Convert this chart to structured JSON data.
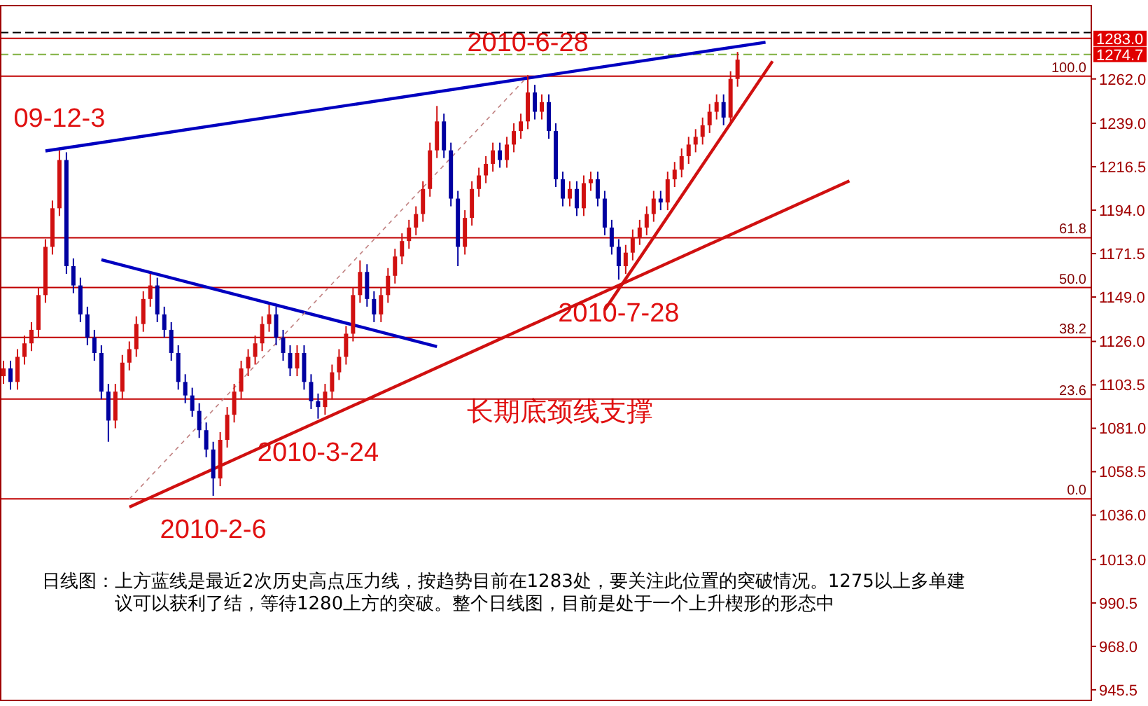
{
  "chart_data": {
    "type": "candlestick",
    "categories": [
      null,
      null,
      null,
      null,
      null,
      null,
      null,
      null,
      null,
      null,
      null,
      null,
      null,
      null,
      null,
      null,
      null,
      null,
      null,
      null,
      null,
      null,
      null,
      null,
      null,
      null,
      null,
      null,
      null,
      null,
      null,
      null,
      null,
      null,
      null,
      null,
      null,
      null,
      null,
      null,
      null,
      null,
      null,
      null,
      null,
      null,
      null,
      null,
      null,
      null,
      null,
      null,
      null,
      null,
      null,
      null,
      null,
      null,
      null,
      null,
      null,
      null,
      null,
      null,
      null,
      null,
      null,
      null,
      null,
      null,
      null,
      null,
      null,
      null,
      null,
      null,
      null,
      null,
      null,
      null,
      null,
      null,
      null,
      null,
      null,
      null,
      null,
      null,
      null,
      null,
      null,
      null,
      null,
      null,
      null,
      null,
      null,
      null,
      null,
      null,
      null,
      null,
      null,
      null,
      null,
      null,
      null,
      null,
      null,
      null,
      null,
      null,
      null,
      null,
      null,
      null,
      null,
      null,
      null,
      null,
      null,
      null,
      null,
      null,
      null,
      null,
      null,
      null,
      null,
      null,
      null,
      null,
      null,
      null,
      null,
      null,
      null,
      null,
      null,
      null,
      null,
      null,
      null,
      null,
      null,
      null,
      null,
      null,
      null,
      null,
      null,
      null,
      null,
      null,
      null,
      null
    ],
    "ohlc": [
      [
        1108,
        1116,
        1104,
        1112
      ],
      [
        1112,
        1116,
        1101,
        1105
      ],
      [
        1105,
        1122,
        1101,
        1118
      ],
      [
        1118,
        1129,
        1114,
        1125
      ],
      [
        1125,
        1136,
        1121,
        1132
      ],
      [
        1132,
        1154,
        1128,
        1150
      ],
      [
        1150,
        1179,
        1146,
        1175
      ],
      [
        1175,
        1199,
        1171,
        1195
      ],
      [
        1195,
        1225,
        1191,
        1220
      ],
      [
        1220,
        1224,
        1161,
        1165
      ],
      [
        1165,
        1169,
        1151,
        1155
      ],
      [
        1155,
        1159,
        1136,
        1140
      ],
      [
        1140,
        1144,
        1124,
        1128
      ],
      [
        1128,
        1132,
        1116,
        1120
      ],
      [
        1120,
        1124,
        1096,
        1100
      ],
      [
        1100,
        1104,
        1074,
        1085
      ],
      [
        1085,
        1104,
        1081,
        1100
      ],
      [
        1100,
        1119,
        1096,
        1115
      ],
      [
        1115,
        1126,
        1111,
        1122
      ],
      [
        1122,
        1139,
        1118,
        1135
      ],
      [
        1135,
        1152,
        1131,
        1148
      ],
      [
        1148,
        1161,
        1144,
        1155
      ],
      [
        1155,
        1159,
        1136,
        1140
      ],
      [
        1140,
        1144,
        1128,
        1132
      ],
      [
        1132,
        1136,
        1116,
        1120
      ],
      [
        1120,
        1124,
        1101,
        1105
      ],
      [
        1105,
        1109,
        1094,
        1098
      ],
      [
        1098,
        1102,
        1087,
        1090
      ],
      [
        1090,
        1094,
        1076,
        1080
      ],
      [
        1080,
        1084,
        1066,
        1070
      ],
      [
        1070,
        1074,
        1046,
        1055
      ],
      [
        1055,
        1079,
        1051,
        1075
      ],
      [
        1075,
        1092,
        1071,
        1088
      ],
      [
        1088,
        1104,
        1084,
        1100
      ],
      [
        1100,
        1116,
        1096,
        1112
      ],
      [
        1112,
        1122,
        1108,
        1118
      ],
      [
        1118,
        1129,
        1114,
        1125
      ],
      [
        1125,
        1139,
        1121,
        1135
      ],
      [
        1135,
        1145,
        1131,
        1140
      ],
      [
        1140,
        1144,
        1124,
        1128
      ],
      [
        1128,
        1132,
        1116,
        1120
      ],
      [
        1120,
        1124,
        1108,
        1112
      ],
      [
        1112,
        1124,
        1108,
        1120
      ],
      [
        1120,
        1124,
        1101,
        1105
      ],
      [
        1105,
        1109,
        1091,
        1095
      ],
      [
        1095,
        1099,
        1086,
        1092
      ],
      [
        1092,
        1104,
        1088,
        1100
      ],
      [
        1100,
        1114,
        1096,
        1110
      ],
      [
        1110,
        1122,
        1106,
        1118
      ],
      [
        1118,
        1134,
        1114,
        1130
      ],
      [
        1130,
        1154,
        1126,
        1150
      ],
      [
        1150,
        1168,
        1146,
        1162
      ],
      [
        1162,
        1166,
        1144,
        1148
      ],
      [
        1148,
        1152,
        1136,
        1140
      ],
      [
        1140,
        1154,
        1136,
        1150
      ],
      [
        1150,
        1164,
        1146,
        1160
      ],
      [
        1160,
        1174,
        1156,
        1170
      ],
      [
        1170,
        1182,
        1166,
        1178
      ],
      [
        1178,
        1189,
        1174,
        1185
      ],
      [
        1185,
        1196,
        1181,
        1192
      ],
      [
        1192,
        1209,
        1188,
        1205
      ],
      [
        1205,
        1229,
        1201,
        1225
      ],
      [
        1225,
        1248,
        1221,
        1240
      ],
      [
        1240,
        1244,
        1221,
        1225
      ],
      [
        1225,
        1229,
        1196,
        1200
      ],
      [
        1200,
        1204,
        1165,
        1175
      ],
      [
        1175,
        1194,
        1171,
        1190
      ],
      [
        1190,
        1209,
        1186,
        1205
      ],
      [
        1205,
        1216,
        1201,
        1212
      ],
      [
        1212,
        1222,
        1208,
        1218
      ],
      [
        1218,
        1229,
        1214,
        1225
      ],
      [
        1225,
        1229,
        1216,
        1220
      ],
      [
        1220,
        1232,
        1216,
        1228
      ],
      [
        1228,
        1239,
        1224,
        1235
      ],
      [
        1235,
        1244,
        1231,
        1240
      ],
      [
        1240,
        1264,
        1236,
        1255
      ],
      [
        1255,
        1259,
        1241,
        1245
      ],
      [
        1245,
        1254,
        1241,
        1250
      ],
      [
        1250,
        1254,
        1231,
        1235
      ],
      [
        1235,
        1239,
        1206,
        1210
      ],
      [
        1210,
        1214,
        1196,
        1200
      ],
      [
        1200,
        1209,
        1196,
        1205
      ],
      [
        1205,
        1209,
        1191,
        1195
      ],
      [
        1195,
        1212,
        1191,
        1208
      ],
      [
        1208,
        1214,
        1204,
        1210
      ],
      [
        1210,
        1214,
        1196,
        1200
      ],
      [
        1200,
        1204,
        1181,
        1185
      ],
      [
        1185,
        1189,
        1171,
        1175
      ],
      [
        1175,
        1179,
        1158,
        1165
      ],
      [
        1165,
        1176,
        1161,
        1172
      ],
      [
        1172,
        1184,
        1168,
        1180
      ],
      [
        1180,
        1189,
        1176,
        1185
      ],
      [
        1185,
        1196,
        1181,
        1192
      ],
      [
        1192,
        1204,
        1188,
        1200
      ],
      [
        1200,
        1204,
        1194,
        1198
      ],
      [
        1198,
        1214,
        1194,
        1210
      ],
      [
        1210,
        1219,
        1206,
        1215
      ],
      [
        1215,
        1226,
        1211,
        1222
      ],
      [
        1222,
        1232,
        1218,
        1228
      ],
      [
        1228,
        1236,
        1224,
        1232
      ],
      [
        1232,
        1242,
        1228,
        1238
      ],
      [
        1238,
        1249,
        1234,
        1245
      ],
      [
        1245,
        1254,
        1241,
        1250
      ],
      [
        1250,
        1254,
        1238,
        1242
      ],
      [
        1242,
        1266,
        1238,
        1262
      ],
      [
        1262,
        1276,
        1258,
        1272
      ],
      null,
      null,
      null,
      null,
      null,
      null,
      null,
      null,
      null,
      null,
      null,
      null,
      null,
      null,
      null,
      null,
      null,
      null,
      null,
      null,
      null,
      null,
      null,
      null,
      null,
      null,
      null,
      null,
      null,
      null,
      null,
      null,
      null,
      null,
      null,
      null,
      null,
      null,
      null,
      null,
      null,
      null,
      null,
      null,
      null,
      null,
      null,
      null,
      null,
      null
    ],
    "series": [
      {
        "type": "line",
        "color": "#0000c0",
        "values": [
          null,
          null,
          null,
          null,
          null,
          null,
          1224.7,
          null,
          null,
          null,
          null,
          null,
          null,
          null,
          null,
          null,
          null,
          null,
          null,
          null,
          null,
          null,
          null,
          null,
          null,
          null,
          null,
          null,
          null,
          null,
          null,
          null,
          null,
          null,
          null,
          null,
          null,
          null,
          null,
          null,
          null,
          null,
          null,
          null,
          null,
          null,
          null,
          null,
          null,
          null,
          null,
          null,
          null,
          null,
          null,
          null,
          null,
          null,
          null,
          null,
          null,
          null,
          null,
          null,
          null,
          null,
          null,
          null,
          null,
          null,
          null,
          null,
          null,
          null,
          null,
          null,
          null,
          null,
          null,
          null,
          null,
          null,
          null,
          null,
          null,
          null,
          null,
          null,
          null,
          null,
          null,
          null,
          null,
          null,
          null,
          null,
          null,
          null,
          null,
          null,
          null,
          null,
          null,
          null,
          null,
          null,
          null,
          null,
          null,
          1281.0,
          null,
          null,
          null,
          null,
          null,
          null,
          null,
          null,
          null,
          null,
          null,
          null,
          null,
          null,
          null,
          null,
          null,
          null,
          null,
          null,
          null,
          null,
          null,
          null,
          null,
          null,
          null,
          null,
          null,
          null,
          null,
          null,
          null,
          null,
          null,
          null,
          null,
          null,
          null,
          null,
          null,
          null,
          null,
          null,
          null,
          null
        ]
      },
      {
        "type": "line",
        "color": "#0000c0",
        "values": [
          null,
          null,
          null,
          null,
          null,
          null,
          null,
          null,
          null,
          null,
          null,
          null,
          null,
          null,
          1168.3,
          null,
          null,
          null,
          null,
          null,
          null,
          null,
          null,
          null,
          null,
          null,
          null,
          null,
          null,
          null,
          null,
          null,
          null,
          null,
          null,
          null,
          null,
          null,
          null,
          null,
          null,
          null,
          null,
          null,
          null,
          null,
          null,
          null,
          null,
          null,
          null,
          null,
          null,
          null,
          null,
          null,
          null,
          null,
          null,
          null,
          null,
          null,
          1123.3,
          null,
          null,
          null,
          null,
          null,
          null,
          null,
          null,
          null,
          null,
          null,
          null,
          null,
          null,
          null,
          null,
          null,
          null,
          null,
          null,
          null,
          null,
          null,
          null,
          null,
          null,
          null,
          null,
          null,
          null,
          null,
          null,
          null,
          null,
          null,
          null,
          null,
          null,
          null,
          null,
          null,
          null,
          null,
          null,
          null,
          null,
          null,
          null,
          null,
          null,
          null,
          null,
          null,
          null,
          null,
          null,
          null,
          null,
          null,
          null,
          null,
          null,
          null,
          null,
          null,
          null,
          null,
          null,
          null,
          null,
          null,
          null,
          null,
          null,
          null,
          null,
          null,
          null,
          null,
          null,
          null,
          null,
          null,
          null,
          null,
          null,
          null,
          null,
          null,
          null,
          null,
          null,
          null
        ]
      },
      {
        "type": "line",
        "color": "#d01010",
        "values": [
          null,
          null,
          null,
          null,
          null,
          null,
          null,
          null,
          null,
          null,
          null,
          null,
          null,
          null,
          null,
          null,
          null,
          null,
          1040.2,
          null,
          null,
          null,
          null,
          null,
          null,
          null,
          null,
          null,
          null,
          null,
          null,
          null,
          null,
          null,
          null,
          null,
          null,
          null,
          null,
          null,
          null,
          null,
          null,
          null,
          null,
          null,
          null,
          null,
          null,
          null,
          null,
          null,
          null,
          null,
          null,
          null,
          null,
          null,
          null,
          null,
          null,
          null,
          null,
          null,
          null,
          null,
          null,
          null,
          null,
          null,
          null,
          null,
          null,
          null,
          null,
          null,
          null,
          null,
          null,
          null,
          null,
          null,
          null,
          null,
          null,
          null,
          null,
          null,
          null,
          null,
          null,
          null,
          null,
          null,
          null,
          null,
          null,
          null,
          null,
          null,
          null,
          null,
          null,
          null,
          null,
          null,
          null,
          null,
          null,
          null,
          null,
          null,
          null,
          null,
          null,
          null,
          null,
          null,
          null,
          null,
          null,
          1209.2,
          null,
          null,
          null,
          null,
          null,
          null,
          null,
          null,
          null,
          null,
          null,
          null,
          null,
          null,
          null,
          null,
          null,
          null,
          null,
          null,
          null,
          null,
          null,
          null,
          null,
          null,
          null,
          null,
          null,
          null,
          null,
          null,
          null,
          null
        ]
      },
      {
        "type": "line",
        "color": "#d01010",
        "values": [
          null,
          null,
          null,
          null,
          null,
          null,
          null,
          null,
          null,
          null,
          null,
          null,
          null,
          null,
          null,
          null,
          null,
          null,
          null,
          null,
          null,
          null,
          null,
          null,
          null,
          null,
          null,
          null,
          null,
          null,
          null,
          null,
          null,
          null,
          null,
          null,
          null,
          null,
          null,
          null,
          null,
          null,
          null,
          null,
          null,
          null,
          null,
          null,
          null,
          null,
          null,
          null,
          null,
          null,
          null,
          null,
          null,
          null,
          null,
          null,
          null,
          null,
          null,
          null,
          null,
          null,
          null,
          null,
          null,
          null,
          null,
          null,
          null,
          null,
          null,
          null,
          null,
          null,
          null,
          null,
          null,
          null,
          null,
          null,
          null,
          null,
          1142.3,
          null,
          null,
          null,
          null,
          null,
          null,
          null,
          null,
          null,
          null,
          null,
          null,
          null,
          null,
          null,
          null,
          null,
          null,
          null,
          null,
          null,
          null,
          null,
          1271.2,
          null,
          null,
          null,
          null,
          null,
          null,
          null,
          null,
          null,
          null,
          null,
          null,
          null,
          null,
          null,
          null,
          null,
          null,
          null,
          null,
          null,
          null,
          null,
          null,
          null,
          null,
          null,
          null,
          null,
          null,
          null,
          null,
          null,
          null,
          null,
          null,
          null,
          null,
          null,
          null,
          null,
          null,
          null,
          null,
          null
        ]
      },
      {
        "type": "line",
        "color": "#c08080",
        "line_style": "dashed",
        "values": [
          null,
          null,
          null,
          null,
          null,
          null,
          null,
          null,
          null,
          null,
          null,
          null,
          null,
          null,
          null,
          null,
          null,
          null,
          1044.4,
          null,
          null,
          null,
          null,
          null,
          null,
          null,
          null,
          null,
          null,
          null,
          null,
          null,
          null,
          null,
          null,
          null,
          null,
          null,
          null,
          null,
          null,
          null,
          null,
          null,
          null,
          null,
          null,
          null,
          null,
          null,
          null,
          null,
          null,
          null,
          null,
          null,
          null,
          null,
          null,
          null,
          null,
          null,
          null,
          null,
          null,
          null,
          null,
          null,
          null,
          null,
          null,
          null,
          null,
          null,
          null,
          1263.4,
          null,
          null,
          null,
          null,
          null,
          null,
          null,
          null,
          null,
          null,
          null,
          null,
          null,
          null,
          null,
          null,
          null,
          null,
          null,
          null,
          null,
          null,
          null,
          null,
          null,
          null,
          null,
          null,
          null,
          null,
          null,
          null,
          null,
          null,
          null,
          null,
          null,
          null,
          null,
          null,
          null,
          null,
          null,
          null,
          null,
          null,
          null,
          null,
          null,
          null,
          null,
          null,
          null,
          null,
          null,
          null,
          null,
          null,
          null,
          null,
          null,
          null,
          null,
          null,
          null,
          null,
          null,
          null,
          null,
          null,
          null,
          null,
          null,
          null,
          null,
          null,
          null,
          null,
          null,
          null
        ]
      }
    ],
    "ylim": [
      940,
      1300
    ],
    "yticks": [
      {
        "value": 945.5,
        "label": "945.5"
      },
      {
        "value": 968,
        "label": "968.0"
      },
      {
        "value": 990.5,
        "label": "990.5"
      },
      {
        "value": 1013,
        "label": "1013.0"
      },
      {
        "value": 1036,
        "label": "1036.0"
      },
      {
        "value": 1058.5,
        "label": "1058.5"
      },
      {
        "value": 1081,
        "label": "1081.0"
      },
      {
        "value": 1103.5,
        "label": "1103.5"
      },
      {
        "value": 1126,
        "label": "1126.0"
      },
      {
        "value": 1149,
        "label": "1149.0"
      },
      {
        "value": 1171.5,
        "label": "1171.5"
      },
      {
        "value": 1194,
        "label": "1194.0"
      },
      {
        "value": 1216.5,
        "label": "1216.5"
      },
      {
        "value": 1239,
        "label": "1239.0"
      },
      {
        "value": 1262,
        "label": "1262.0"
      }
    ],
    "tick_labels": "y",
    "ref_lines": [
      {
        "axis": "y",
        "value": 1286,
        "label": null,
        "color": "#000000",
        "line_style": "dashed"
      },
      {
        "axis": "y",
        "value": 1283.0,
        "label": "1283.0",
        "color": "#c00000",
        "line_style": "solid"
      },
      {
        "axis": "y",
        "value": 1274.7,
        "label": "1274.7",
        "color": "#80b040",
        "line_style": "dashed"
      },
      {
        "axis": "y",
        "value": 1263.4,
        "label": null,
        "color": "#c00000",
        "line_style": "solid"
      },
      {
        "axis": "y",
        "value": 1179.7,
        "label": null,
        "color": "#c00000",
        "line_style": "solid"
      },
      {
        "axis": "y",
        "value": 1153.9,
        "label": null,
        "color": "#c00000",
        "line_style": "solid"
      },
      {
        "axis": "y",
        "value": 1128.1,
        "label": null,
        "color": "#c00000",
        "line_style": "solid"
      },
      {
        "axis": "y",
        "value": 1096.1,
        "label": null,
        "color": "#c00000",
        "line_style": "solid"
      },
      {
        "axis": "y",
        "value": 1044.4,
        "label": null,
        "color": "#c00000",
        "line_style": "solid"
      }
    ],
    "annotations": [
      {
        "text": "100.0",
        "y": 1263.4
      },
      {
        "text": "61.8",
        "y": 1179.7
      },
      {
        "text": "50.0",
        "y": 1153.9
      },
      {
        "text": "38.2",
        "y": 1128.1
      },
      {
        "text": "23.6",
        "y": 1096.1
      },
      {
        "text": "0.0",
        "y": 1044.4
      },
      {
        "text": "09-12-3",
        "y": 1225
      },
      {
        "text": "2010-6-28",
        "y": 1264
      },
      {
        "text": "2010-2-6",
        "y": 1046
      },
      {
        "text": "2010-3-24",
        "y": 1086
      },
      {
        "text": "2010-7-28",
        "y": 1158
      },
      "长期底颈线支撑",
      "日线图：上方蓝线是最近2次历史高点压力线，按趋势目前在1283处，要关注此位置的突破情况。1275以上多单建议可以获利了结，等待1280上方的突破。整个日线图，目前是处于一个上升楔形的形态中"
    ]
  }
}
